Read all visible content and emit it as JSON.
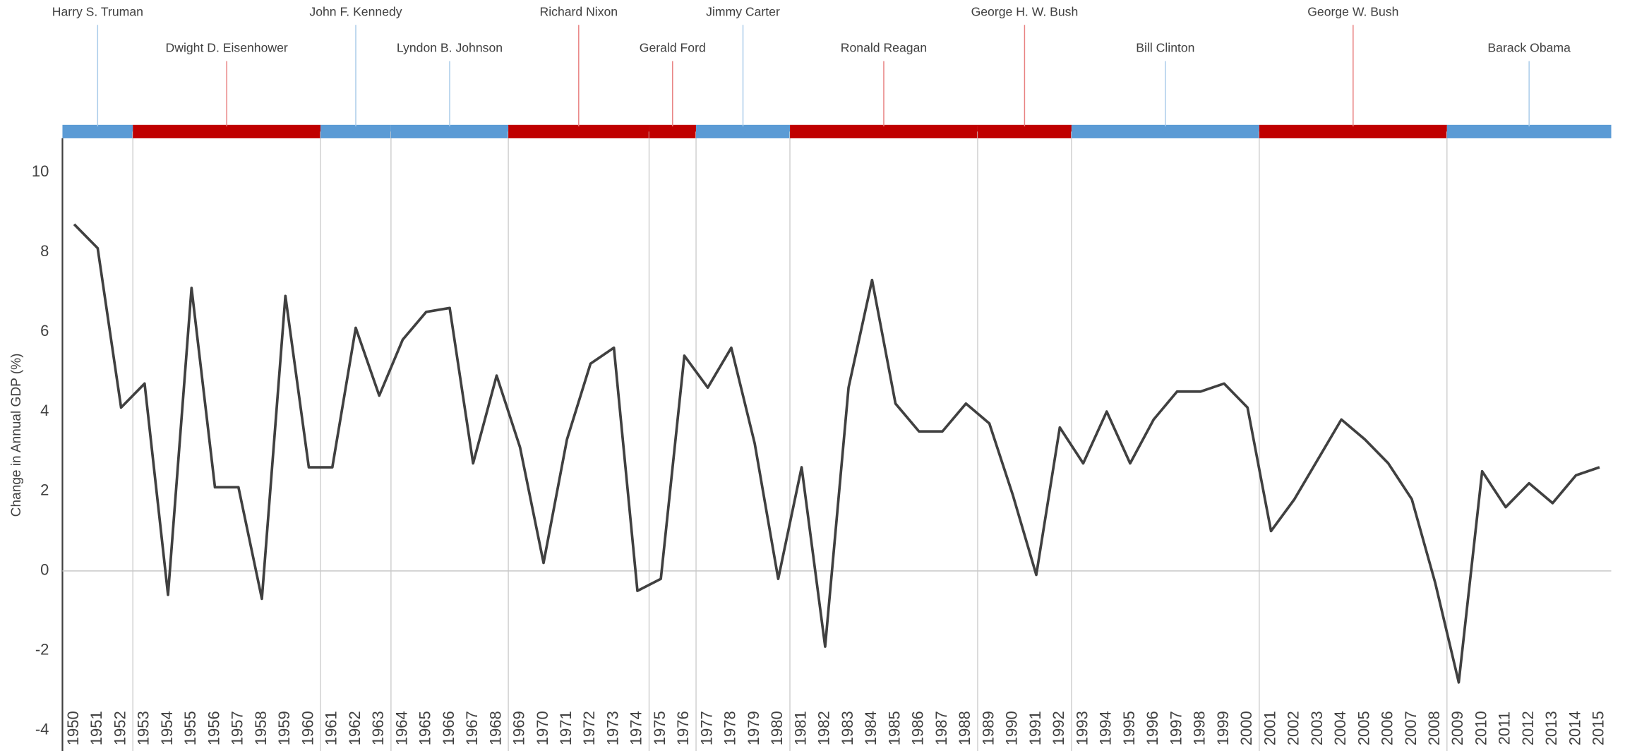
{
  "chart_data": {
    "type": "line",
    "y_axis_label": "Change in Annual GDP (%)",
    "categories": [
      "1950",
      "1951",
      "1952",
      "1953",
      "1954",
      "1955",
      "1956",
      "1957",
      "1958",
      "1959",
      "1960",
      "1961",
      "1962",
      "1963",
      "1964",
      "1965",
      "1966",
      "1967",
      "1968",
      "1969",
      "1970",
      "1971",
      "1972",
      "1973",
      "1974",
      "1975",
      "1976",
      "1977",
      "1978",
      "1979",
      "1980",
      "1981",
      "1982",
      "1983",
      "1984",
      "1985",
      "1986",
      "1987",
      "1988",
      "1989",
      "1990",
      "1991",
      "1992",
      "1993",
      "1994",
      "1995",
      "1996",
      "1997",
      "1998",
      "1999",
      "2000",
      "2001",
      "2002",
      "2003",
      "2004",
      "2005",
      "2006",
      "2007",
      "2008",
      "2009",
      "2010",
      "2011",
      "2012",
      "2013",
      "2014",
      "2015"
    ],
    "series": [
      {
        "name": "GDP",
        "color": "#404040",
        "values": [
          8.7,
          8.1,
          4.1,
          4.7,
          -0.6,
          7.1,
          2.1,
          2.1,
          -0.7,
          6.9,
          2.6,
          2.6,
          6.1,
          4.4,
          5.8,
          6.5,
          6.6,
          2.7,
          4.9,
          3.1,
          0.2,
          3.3,
          5.2,
          5.6,
          -0.5,
          -0.2,
          5.4,
          4.6,
          5.6,
          3.2,
          -0.2,
          2.6,
          -1.9,
          4.6,
          7.3,
          4.2,
          3.5,
          3.5,
          4.2,
          3.7,
          1.9,
          -0.1,
          3.6,
          2.7,
          4.0,
          2.7,
          3.8,
          4.5,
          4.5,
          4.7,
          4.1,
          1.0,
          1.8,
          2.8,
          3.8,
          3.3,
          2.7,
          1.8,
          -0.3,
          -2.8,
          2.5,
          1.6,
          2.2,
          1.7,
          2.4,
          2.6
        ]
      }
    ],
    "ylim": [
      -4,
      11
    ],
    "yticks": [
      -4,
      -2,
      0,
      2,
      4,
      6,
      8,
      10
    ],
    "grid": false,
    "presidents": [
      {
        "name": "Harry S. Truman",
        "from": "1950",
        "to": "1952",
        "color": "#5b9bd5"
      },
      {
        "name": "Dwight D. Eisenhower",
        "from": "1953",
        "to": "1960",
        "color": "#c00000"
      },
      {
        "name": "John F. Kennedy",
        "from": "1961",
        "to": "1963",
        "color": "#5b9bd5"
      },
      {
        "name": "Lyndon B. Johnson",
        "from": "1964",
        "to": "1968",
        "color": "#5b9bd5"
      },
      {
        "name": "Richard Nixon",
        "from": "1969",
        "to": "1974",
        "color": "#c00000"
      },
      {
        "name": "Gerald Ford",
        "from": "1975",
        "to": "1976",
        "color": "#c00000"
      },
      {
        "name": "Jimmy Carter",
        "from": "1977",
        "to": "1980",
        "color": "#5b9bd5"
      },
      {
        "name": "Ronald Reagan",
        "from": "1981",
        "to": "1988",
        "color": "#c00000"
      },
      {
        "name": "George H. W. Bush",
        "from": "1989",
        "to": "1992",
        "color": "#c00000"
      },
      {
        "name": "Bill Clinton",
        "from": "1993",
        "to": "2000",
        "color": "#5b9bd5"
      },
      {
        "name": "George W. Bush",
        "from": "2001",
        "to": "2008",
        "color": "#c00000"
      },
      {
        "name": "Barack Obama",
        "from": "2009",
        "to": "2015",
        "color": "#5b9bd5"
      }
    ]
  }
}
